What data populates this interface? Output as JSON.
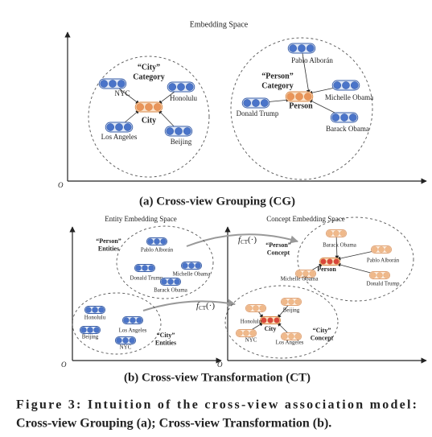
{
  "panel_a": {
    "title": "Embedding Space",
    "origin": "O",
    "groups": [
      {
        "label": [
          "“City”",
          "Category"
        ],
        "center": "City",
        "members": [
          "NYC",
          "Honolulu",
          "Los Angeles",
          "Beijing"
        ]
      },
      {
        "label": [
          "“Person”",
          "Category"
        ],
        "center": "Person",
        "members": [
          "Pablo Alborán",
          "Donald Trump",
          "Michelle Obama",
          "Barack Obama"
        ]
      }
    ],
    "caption": "(a) Cross-view Grouping (CG)"
  },
  "panel_b": {
    "left_title": "Entity Embedding Space",
    "right_title": "Concept Embedding Space",
    "origin_left": "O",
    "origin_right": "O",
    "entity_groups": [
      {
        "label": [
          "“Person”",
          "Entities"
        ],
        "members": [
          "Pablo Alborán",
          "Donald Trump",
          "Michelle Obama",
          "Barack Obama"
        ]
      },
      {
        "label": [
          "“City”",
          "Entities"
        ],
        "members": [
          "Honolulu",
          "Los Angeles",
          "Beijing",
          "NYC"
        ]
      }
    ],
    "concept_groups": [
      {
        "label": [
          "“Person”",
          "Concept"
        ],
        "center": "Person",
        "members": [
          "Barack Obama",
          "Pablo Alborán",
          "Michelle Obama",
          "Donald Trump"
        ]
      },
      {
        "label": [
          "“City”",
          "Concept"
        ],
        "center": "City",
        "members": [
          "Honolulu",
          "Beijing",
          "NYC",
          "Los Angeles"
        ]
      }
    ],
    "transform_labels": [
      {
        "f": "f",
        "sub": "CT",
        "arg": "(·)"
      },
      {
        "f": "f",
        "sub": "CT",
        "arg": "(·)"
      }
    ],
    "caption": "(b) Cross-view Transformation (CT)"
  },
  "figure_caption": [
    "Figure 3: Intuition of the cross-view association model:",
    "Cross-view Grouping (a); Cross-view Transformation (b)."
  ]
}
